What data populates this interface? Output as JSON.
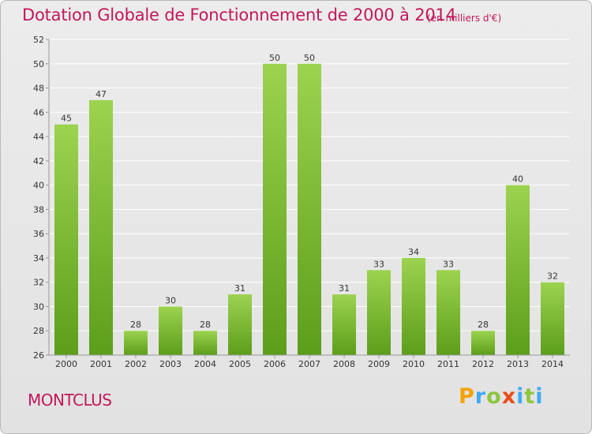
{
  "header": {
    "title": "Dotation Globale de Fonctionnement de 2000 à 2014",
    "subtitle": "(en milliers d'€)"
  },
  "footer": {
    "city": "MONTCLUS",
    "brand": "Proxiti",
    "brand_letters": [
      {
        "ch": "P",
        "cls": "p"
      },
      {
        "ch": "r",
        "cls": "r"
      },
      {
        "ch": "o",
        "cls": "o"
      },
      {
        "ch": "x",
        "cls": "x"
      },
      {
        "ch": "i",
        "cls": "i"
      },
      {
        "ch": "t",
        "cls": "t"
      },
      {
        "ch": "i",
        "cls": "i"
      }
    ]
  },
  "colors": {
    "title": "#c2185b",
    "bar_top": "#9cd34f",
    "bar_bottom": "#5c9e1a",
    "grid": "#ffffff",
    "axis": "#999999"
  },
  "chart_data": {
    "type": "bar",
    "title": "Dotation Globale de Fonctionnement de 2000 à 2014",
    "subtitle": "(en milliers d'€)",
    "xlabel": "",
    "ylabel": "",
    "categories": [
      "2000",
      "2001",
      "2002",
      "2003",
      "2004",
      "2005",
      "2006",
      "2007",
      "2008",
      "2009",
      "2010",
      "2011",
      "2012",
      "2013",
      "2014"
    ],
    "values": [
      45,
      47,
      28,
      30,
      28,
      31,
      50,
      50,
      31,
      33,
      34,
      33,
      28,
      40,
      32
    ],
    "ylim": [
      26,
      52
    ],
    "yticks": [
      26,
      28,
      30,
      32,
      34,
      36,
      38,
      40,
      42,
      44,
      46,
      48,
      50,
      52
    ],
    "grid": "horizontal",
    "data_labels": true
  }
}
